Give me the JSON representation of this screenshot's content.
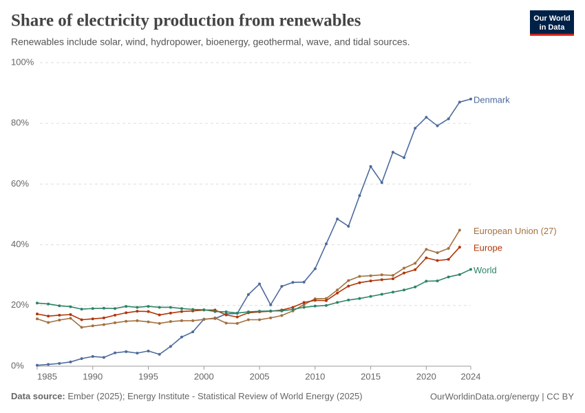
{
  "chart_data": {
    "type": "line",
    "title": "Share of electricity production from renewables",
    "subtitle": "Renewables include solar, wind, hydropower, bioenergy, geothermal, wave, and tidal sources.",
    "x": [
      1985,
      1986,
      1987,
      1988,
      1989,
      1990,
      1991,
      1992,
      1993,
      1994,
      1995,
      1996,
      1997,
      1998,
      1999,
      2000,
      2001,
      2002,
      2003,
      2004,
      2005,
      2006,
      2007,
      2008,
      2009,
      2010,
      2011,
      2012,
      2013,
      2014,
      2015,
      2016,
      2017,
      2018,
      2019,
      2020,
      2021,
      2022,
      2023,
      2024
    ],
    "series": [
      {
        "name": "Denmark",
        "color": "#4c6a9c",
        "values": [
          0.3,
          0.6,
          0.9,
          1.4,
          2.5,
          3.2,
          2.9,
          4.4,
          4.8,
          4.3,
          5.0,
          3.9,
          6.5,
          9.6,
          11.3,
          15.5,
          15.7,
          17.2,
          17.4,
          23.6,
          27.1,
          20.2,
          26.3,
          27.6,
          27.7,
          32.1,
          40.3,
          48.5,
          46.1,
          56.2,
          65.8,
          60.5,
          70.5,
          68.7,
          78.4,
          82.0,
          79.2,
          81.5,
          87.0,
          88.0
        ]
      },
      {
        "name": "European Union (27)",
        "color": "#a2703e",
        "values": [
          15.6,
          14.4,
          15.2,
          15.8,
          12.8,
          13.3,
          13.7,
          14.3,
          14.8,
          15.0,
          14.6,
          14.1,
          14.7,
          15.0,
          15.0,
          15.4,
          15.9,
          14.2,
          14.1,
          15.3,
          15.3,
          15.9,
          16.7,
          18.2,
          20.3,
          22.2,
          22.3,
          25.1,
          28.2,
          29.6,
          29.8,
          30.1,
          29.9,
          32.3,
          33.9,
          38.5,
          37.4,
          38.8,
          44.8,
          null
        ]
      },
      {
        "name": "Europe",
        "color": "#b13507",
        "values": [
          17.2,
          16.5,
          16.8,
          17.0,
          15.3,
          15.6,
          15.9,
          16.8,
          17.6,
          18.1,
          18.0,
          16.9,
          17.5,
          18.0,
          18.2,
          18.5,
          18.5,
          16.9,
          16.2,
          17.6,
          17.9,
          18.1,
          18.5,
          19.4,
          21.0,
          21.7,
          21.6,
          24.1,
          26.4,
          27.5,
          28.1,
          28.5,
          28.8,
          30.7,
          31.8,
          35.7,
          34.8,
          35.2,
          39.2,
          null
        ]
      },
      {
        "name": "World",
        "color": "#2c8465",
        "values": [
          20.8,
          20.5,
          19.9,
          19.6,
          18.8,
          19.0,
          19.1,
          19.0,
          19.7,
          19.4,
          19.7,
          19.4,
          19.4,
          19.0,
          18.7,
          18.6,
          18.0,
          17.9,
          17.5,
          17.9,
          18.1,
          18.2,
          18.2,
          18.7,
          19.4,
          19.8,
          20.0,
          21.0,
          21.8,
          22.3,
          23.0,
          23.7,
          24.4,
          25.1,
          26.1,
          28.0,
          28.1,
          29.4,
          30.2,
          31.9
        ]
      }
    ],
    "xlim": [
      1985,
      2024
    ],
    "xticks": [
      1985,
      1990,
      1995,
      2000,
      2005,
      2010,
      2015,
      2020,
      2024
    ],
    "ylim": [
      0,
      100
    ],
    "yticks": [
      {
        "value": 0,
        "label": "0%"
      },
      {
        "value": 20,
        "label": "20%"
      },
      {
        "value": 40,
        "label": "40%"
      },
      {
        "value": 60,
        "label": "60%"
      },
      {
        "value": 80,
        "label": "80%"
      },
      {
        "value": 100,
        "label": "100%"
      }
    ],
    "grid": true,
    "source": {
      "label": "Data source:",
      "text": "Ember (2025); Energy Institute - Statistical Review of World Energy (2025)"
    },
    "footer_right": "OurWorldinData.org/energy | CC BY",
    "logo": [
      "Our World",
      "in Data"
    ]
  }
}
